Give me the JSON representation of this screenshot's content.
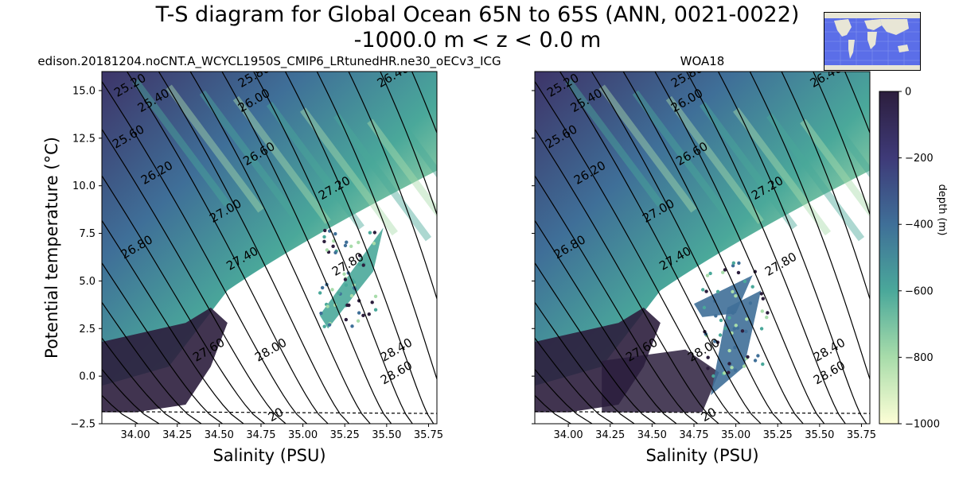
{
  "figure": {
    "title_line1": "T-S diagram for Global Ocean 65N to 65S (ANN, 0021-0022)",
    "title_line2": "-1000.0 m < z < 0.0 m",
    "inset_map": "world-map-inset"
  },
  "colors": {
    "deep": "#2c1e3d",
    "mid": "#3f6f98",
    "teal": "#4aa89a",
    "light": "#a8dcaa",
    "pale": "#fdfed6",
    "contour": "#000000",
    "map_ocean": "#5b6ee8",
    "map_land": "#e8e6d6"
  },
  "chart_data": [
    {
      "type": "scatter",
      "title": "edison.20181204.noCNT.A_WCYCL1950S_CMIP6_LRtunedHR.ne30_oECv3_ICG",
      "xlabel": "Salinity (PSU)",
      "ylabel": "Potential temperature ($^\\circ$C)",
      "ylabel_display": "Potential temperature (°C)",
      "xlim": [
        33.8,
        35.8
      ],
      "ylim": [
        -2.5,
        16.0
      ],
      "xticks": [
        "34.00",
        "34.25",
        "34.50",
        "34.75",
        "35.00",
        "35.25",
        "35.50",
        "35.75"
      ],
      "yticks": [
        "−2.5",
        "0.0",
        "2.5",
        "5.0",
        "7.5",
        "10.0",
        "12.5",
        "15.0"
      ],
      "freezing_line": {
        "t0": -1.86,
        "t1": -1.96
      },
      "density_labels": [
        "25.20",
        "25.40",
        "25.60",
        "25.80",
        "26.00",
        "26.20",
        "26.40",
        "26.60",
        "26.80",
        "27.00",
        "27.20",
        "27.40",
        "27.60",
        "27.80",
        "28.00",
        "28.40",
        "28.60",
        "20"
      ],
      "color_by": "depth (m)"
    },
    {
      "type": "scatter",
      "title": "WOA18",
      "xlabel": "Salinity (PSU)",
      "xlim": [
        33.8,
        35.8
      ],
      "ylim": [
        -2.5,
        16.0
      ],
      "xticks": [
        "34.00",
        "34.25",
        "34.50",
        "34.75",
        "35.00",
        "35.25",
        "35.50",
        "35.75"
      ],
      "freezing_line": {
        "t0": -1.86,
        "t1": -1.96
      },
      "density_labels": [
        "25.20",
        "25.40",
        "25.60",
        "25.80",
        "26.00",
        "26.20",
        "26.40",
        "26.60",
        "26.80",
        "27.00",
        "27.20",
        "27.40",
        "27.60",
        "27.80",
        "28.00",
        "28.40",
        "28.60",
        "20"
      ],
      "color_by": "depth (m)"
    }
  ],
  "colorbar": {
    "label": "depth (m)",
    "range": [
      -1000,
      0
    ],
    "ticks": [
      "0",
      "−200",
      "−400",
      "−600",
      "−800",
      "−1000"
    ],
    "tick_values": [
      0,
      -200,
      -400,
      -600,
      -800,
      -1000
    ]
  }
}
